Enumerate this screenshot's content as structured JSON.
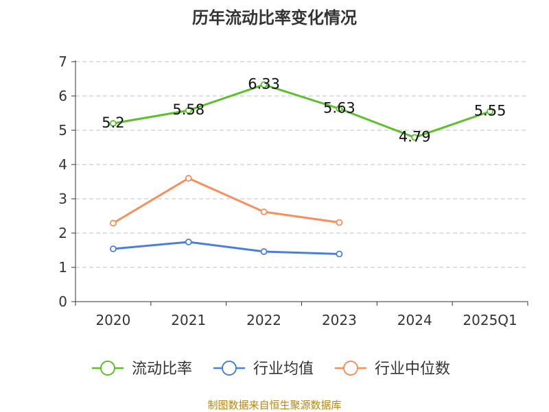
{
  "chart_data": {
    "type": "line",
    "title": "历年流动比率变化情况",
    "categories": [
      "2020",
      "2021",
      "2022",
      "2023",
      "2024",
      "2025Q1"
    ],
    "yticks": [
      "0",
      "1",
      "2",
      "3",
      "4",
      "5",
      "6",
      "7"
    ],
    "ylim": [
      0,
      7
    ],
    "grid": true,
    "legend_position": "bottom",
    "series": [
      {
        "name": "流动比率",
        "color": "#5cbf2a",
        "values": [
          5.2,
          5.58,
          6.33,
          5.63,
          4.79,
          5.55
        ],
        "labels": [
          "5.2",
          "5.58",
          "6.33",
          "5.63",
          "4.79",
          "5.55"
        ],
        "show_labels": true
      },
      {
        "name": "行业均值",
        "color": "#4a7fd9",
        "values": [
          1.54,
          1.74,
          1.46,
          1.39,
          null,
          null
        ],
        "show_labels": false
      },
      {
        "name": "行业中位数",
        "color": "#f98d5b",
        "values": [
          2.29,
          3.6,
          2.62,
          2.31,
          null,
          null
        ],
        "show_labels": false
      }
    ]
  },
  "source_text": "制图数据来自恒生聚源数据库"
}
